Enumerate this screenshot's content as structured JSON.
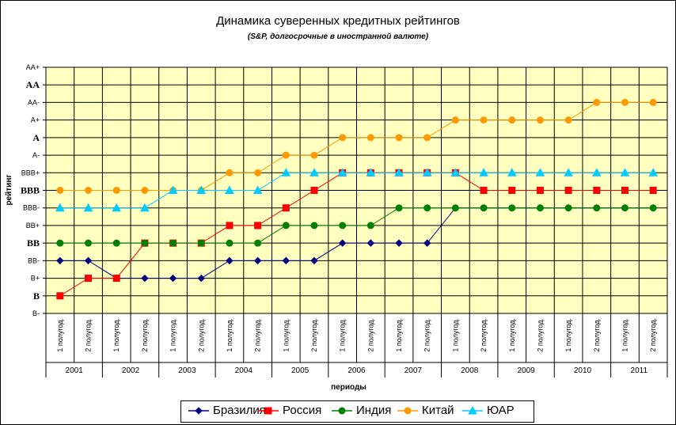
{
  "chart_data": {
    "type": "line",
    "title": "Динамика суверенных кредитных рейтингов",
    "subtitle": "(S&P, долгосрочные в иностранной валюте)",
    "xlabel": "периоды",
    "ylabel": "рейтинг",
    "y_categories": [
      "B-",
      "B",
      "B+",
      "BB-",
      "BB",
      "BB+",
      "BBB-",
      "BBB",
      "BBB+",
      "A-",
      "A",
      "A+",
      "AA-",
      "AA",
      "AA+"
    ],
    "y_bold_ticks": [
      "B",
      "BB",
      "BBB",
      "A",
      "AA"
    ],
    "x_periods": [
      "1 полугод.",
      "2 полугод.",
      "1 полугод.",
      "2 полугод.",
      "1 полугод.",
      "2 полугод.",
      "1 полугод.",
      "2 полугод.",
      "1 полугод.",
      "2 полугод.",
      "1 полугод.",
      "2 полугод.",
      "1 полугод.",
      "2 полугод.",
      "1 полугод.",
      "2 полугод.",
      "1 полугод.",
      "2 полугод.",
      "1 полугод.",
      "2 полугод.",
      "1 полугод.",
      "2 полугод."
    ],
    "x_years": [
      "2001",
      "2002",
      "2003",
      "2004",
      "2005",
      "2006",
      "2007",
      "2008",
      "2009",
      "2010",
      "2011"
    ],
    "grid": true,
    "plot_background": "#ffffc0",
    "legend_position": "bottom",
    "series": [
      {
        "name": "Бразилия",
        "color": "#000080",
        "marker": "diamond",
        "values": [
          "BB-",
          "BB-",
          "B+",
          "B+",
          "B+",
          "B+",
          "BB-",
          "BB-",
          "BB-",
          "BB-",
          "BB",
          "BB",
          "BB",
          "BB",
          "BBB-",
          "BBB-",
          "BBB-",
          "BBB-",
          "BBB-",
          "BBB-",
          "BBB-",
          "BBB-"
        ]
      },
      {
        "name": "Россия",
        "color": "#ff0000",
        "marker": "square",
        "values": [
          "B",
          "B+",
          "B+",
          "BB",
          "BB",
          "BB",
          "BB+",
          "BB+",
          "BBB-",
          "BBB",
          "BBB+",
          "BBB+",
          "BBB+",
          "BBB+",
          "BBB+",
          "BBB",
          "BBB",
          "BBB",
          "BBB",
          "BBB",
          "BBB",
          "BBB"
        ]
      },
      {
        "name": "Индия",
        "color": "#008000",
        "marker": "circle",
        "values": [
          "BB",
          "BB",
          "BB",
          "BB",
          "BB",
          "BB",
          "BB",
          "BB",
          "BB+",
          "BB+",
          "BB+",
          "BB+",
          "BBB-",
          "BBB-",
          "BBB-",
          "BBB-",
          "BBB-",
          "BBB-",
          "BBB-",
          "BBB-",
          "BBB-",
          "BBB-"
        ]
      },
      {
        "name": "Китай",
        "color": "#ff9900",
        "marker": "circle",
        "values": [
          "BBB",
          "BBB",
          "BBB",
          "BBB",
          "BBB",
          "BBB",
          "BBB+",
          "BBB+",
          "A-",
          "A-",
          "A",
          "A",
          "A",
          "A",
          "A+",
          "A+",
          "A+",
          "A+",
          "A+",
          "AA-",
          "AA-",
          "AA-"
        ]
      },
      {
        "name": "ЮАР",
        "color": "#00ccff",
        "marker": "triangle",
        "values": [
          "BBB-",
          "BBB-",
          "BBB-",
          "BBB-",
          "BBB",
          "BBB",
          "BBB",
          "BBB",
          "BBB+",
          "BBB+",
          "BBB+",
          "BBB+",
          "BBB+",
          "BBB+",
          "BBB+",
          "BBB+",
          "BBB+",
          "BBB+",
          "BBB+",
          "BBB+",
          "BBB+",
          "BBB+"
        ]
      }
    ]
  }
}
